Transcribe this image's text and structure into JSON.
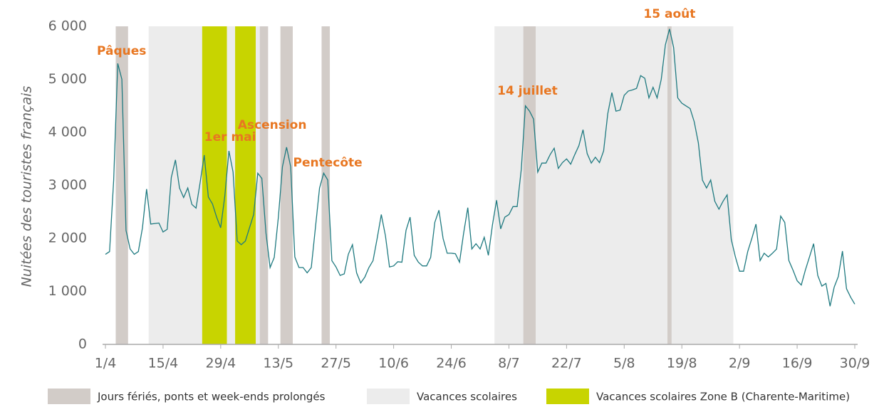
{
  "chart_data": {
    "type": "line",
    "y_label": "Nuitées des touristes français",
    "categories": [
      "1/4",
      null,
      null,
      null,
      null,
      null,
      null,
      null,
      null,
      null,
      null,
      null,
      null,
      null,
      "15/4",
      null,
      null,
      null,
      null,
      null,
      null,
      null,
      null,
      null,
      null,
      null,
      null,
      null,
      "29/4",
      null,
      null,
      null,
      null,
      null,
      null,
      null,
      null,
      null,
      null,
      null,
      null,
      null,
      "13/5",
      null,
      null,
      null,
      null,
      null,
      null,
      null,
      null,
      null,
      null,
      null,
      null,
      null,
      "27/5",
      null,
      null,
      null,
      null,
      null,
      null,
      null,
      null,
      null,
      null,
      null,
      null,
      null,
      "10/6",
      null,
      null,
      null,
      null,
      null,
      null,
      null,
      null,
      null,
      null,
      null,
      null,
      null,
      "24/6",
      null,
      null,
      null,
      null,
      null,
      null,
      null,
      null,
      null,
      null,
      null,
      null,
      null,
      "8/7",
      null,
      null,
      null,
      null,
      null,
      null,
      null,
      null,
      null,
      null,
      null,
      null,
      null,
      "22/7",
      null,
      null,
      null,
      null,
      null,
      null,
      null,
      null,
      null,
      null,
      null,
      null,
      null,
      "5/8",
      null,
      null,
      null,
      null,
      null,
      null,
      null,
      null,
      null,
      null,
      null,
      null,
      null,
      "19/8",
      null,
      null,
      null,
      null,
      null,
      null,
      null,
      null,
      null,
      null,
      null,
      null,
      null,
      "2/9",
      null,
      null,
      null,
      null,
      null,
      null,
      null,
      null,
      null,
      null,
      null,
      null,
      null,
      "16/9",
      null,
      null,
      null,
      null,
      null,
      null,
      null,
      null,
      null,
      null,
      null,
      null,
      null,
      "30/9"
    ],
    "series": [
      {
        "color": "#1f7a80",
        "values": [
          1700,
          1750,
          3100,
          5300,
          5000,
          2150,
          1800,
          1700,
          1750,
          2200,
          2930,
          2270,
          2280,
          2290,
          2120,
          2170,
          3150,
          3480,
          2950,
          2770,
          2950,
          2640,
          2570,
          3050,
          3570,
          2780,
          2650,
          2400,
          2200,
          2800,
          3650,
          3250,
          1950,
          1880,
          1950,
          2200,
          2450,
          3230,
          3130,
          2100,
          1450,
          1640,
          2400,
          3350,
          3720,
          3350,
          1650,
          1450,
          1450,
          1350,
          1450,
          2200,
          2950,
          3230,
          3100,
          1580,
          1460,
          1300,
          1330,
          1700,
          1880,
          1350,
          1160,
          1270,
          1450,
          1580,
          2000,
          2450,
          2050,
          1460,
          1480,
          1560,
          1550,
          2150,
          2400,
          1680,
          1550,
          1480,
          1480,
          1640,
          2300,
          2530,
          2000,
          1720,
          1720,
          1710,
          1550,
          2100,
          2580,
          1800,
          1900,
          1800,
          2020,
          1680,
          2250,
          2720,
          2180,
          2400,
          2450,
          2600,
          2600,
          3300,
          4500,
          4400,
          4250,
          3250,
          3420,
          3420,
          3580,
          3700,
          3320,
          3430,
          3500,
          3400,
          3580,
          3750,
          4050,
          3600,
          3420,
          3530,
          3430,
          3650,
          4350,
          4750,
          4400,
          4420,
          4700,
          4780,
          4800,
          4830,
          5070,
          5020,
          4650,
          4850,
          4650,
          5000,
          5650,
          5950,
          5600,
          4650,
          4550,
          4500,
          4450,
          4200,
          3800,
          3100,
          2950,
          3100,
          2700,
          2550,
          2700,
          2820,
          1980,
          1650,
          1380,
          1380,
          1750,
          2000,
          2270,
          1580,
          1720,
          1650,
          1720,
          1800,
          2420,
          2300,
          1580,
          1400,
          1200,
          1120,
          1400,
          1650,
          1900,
          1300,
          1100,
          1150,
          720,
          1080,
          1280,
          1760,
          1050,
          890,
          760
        ]
      }
    ],
    "bands": [
      {
        "name": "Vacances scolaires",
        "color": "#ececec",
        "ranges": [
          [
            11,
            39
          ],
          [
            95,
            152
          ]
        ]
      },
      {
        "name": "Jours fériés, ponts et week-ends prolongés",
        "color": "#d2ccc8",
        "ranges": [
          [
            3,
            5
          ],
          [
            38,
            39
          ],
          [
            43,
            45
          ],
          [
            53,
            54
          ],
          [
            102,
            104
          ],
          [
            137,
            137
          ]
        ]
      },
      {
        "name": "Vacances scolaires Zone B (Charente-Maritime)",
        "color": "#c8d400",
        "ranges": [
          [
            24,
            29
          ],
          [
            32,
            36
          ]
        ]
      }
    ],
    "legend_order": [
      1,
      0,
      2
    ],
    "annotations": [
      "Pâques",
      "1er mai",
      "Ascension",
      "Pentecôte",
      "14 juillet",
      "15 août"
    ],
    "annotation_color": "#e87722",
    "ylim": [
      0,
      6000
    ],
    "yticks": [
      0,
      {
        "value": 1000,
        "label": "1 000"
      },
      {
        "value": 2000,
        "label": "2 000"
      },
      {
        "value": 3000,
        "label": "3 000"
      },
      {
        "value": 4000,
        "label": "4 000"
      },
      {
        "value": 5000,
        "label": "5 000"
      },
      {
        "value": 6000,
        "label": "6 000"
      }
    ],
    "grid": false
  }
}
